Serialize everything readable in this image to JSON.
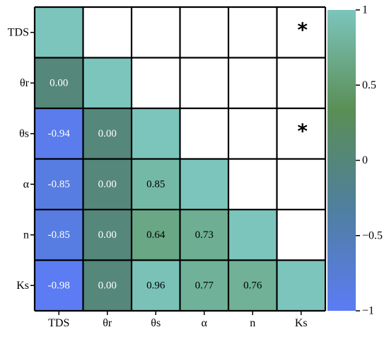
{
  "chart_data": {
    "type": "heatmap",
    "variables": [
      "TDS",
      "θr",
      "θs",
      "α",
      "n",
      "Ks"
    ],
    "matrix": [
      [
        1,
        null,
        null,
        null,
        null,
        null
      ],
      [
        0.0,
        1,
        null,
        null,
        null,
        null
      ],
      [
        -0.94,
        0.0,
        1,
        null,
        null,
        null
      ],
      [
        -0.85,
        0.0,
        0.85,
        1,
        null,
        null
      ],
      [
        -0.85,
        0.0,
        0.64,
        0.73,
        1,
        null
      ],
      [
        -0.98,
        0.0,
        0.96,
        0.77,
        0.76,
        1
      ]
    ],
    "labels": [
      [
        null,
        null,
        null,
        null,
        null,
        null
      ],
      [
        "0.00",
        null,
        null,
        null,
        null,
        null
      ],
      [
        "-0.94",
        "0.00",
        null,
        null,
        null,
        null
      ],
      [
        "-0.85",
        "0.00",
        "0.85",
        null,
        null,
        null
      ],
      [
        "-0.85",
        "0.00",
        "0.64",
        "0.73",
        null,
        null
      ],
      [
        "-0.98",
        "0.00",
        "0.96",
        "0.77",
        "0.76",
        null
      ]
    ],
    "markers": [
      {
        "row": 0,
        "col": 5,
        "text": "*"
      },
      {
        "row": 2,
        "col": 5,
        "text": "*"
      }
    ],
    "colorbar": {
      "range": [
        -1,
        1
      ],
      "ticks": [
        1,
        0.5,
        0,
        -0.5,
        -1
      ],
      "tick_labels": [
        "1",
        "0.5",
        "0",
        "−0.5",
        "−1"
      ],
      "colors": [
        "#5b7cf5",
        "#4f7fa0",
        "#5a8e55",
        "#7cc5bd"
      ]
    }
  }
}
